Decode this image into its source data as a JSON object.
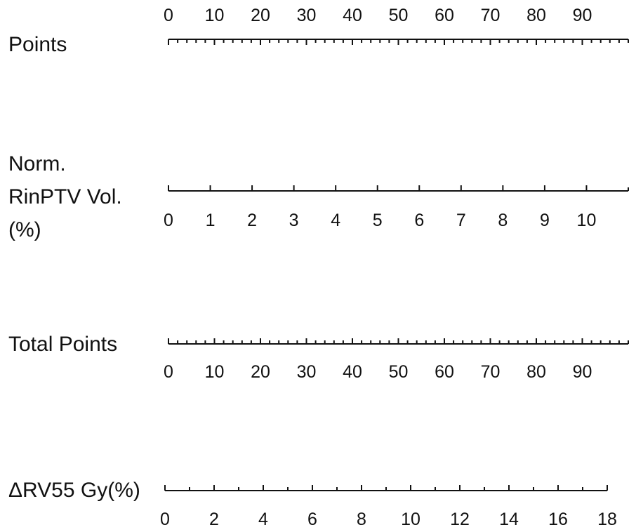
{
  "chart_data": {
    "type": "nomogram",
    "color": "#111111",
    "rows": [
      {
        "id": "points",
        "label_lines": [
          "Points"
        ],
        "min": 0,
        "max": 100,
        "ticks": [
          0,
          10,
          20,
          30,
          40,
          50,
          60,
          70,
          80,
          90
        ],
        "minor_step": 2,
        "tick_direction": "down",
        "labels_position": "above"
      },
      {
        "id": "norm-rinptv-vol",
        "label_lines": [
          "Norm.",
          "RinPTV Vol.",
          "(%)"
        ],
        "min": 0,
        "max": 11,
        "ticks": [
          0,
          1,
          2,
          3,
          4,
          5,
          6,
          7,
          8,
          9,
          10
        ],
        "minor_step": 1,
        "tick_direction": "up",
        "labels_position": "below"
      },
      {
        "id": "total-points",
        "label_lines": [
          "Total Points"
        ],
        "min": 0,
        "max": 100,
        "ticks": [
          0,
          10,
          20,
          30,
          40,
          50,
          60,
          70,
          80,
          90
        ],
        "minor_step": 2,
        "tick_direction": "up",
        "labels_position": "below"
      },
      {
        "id": "delta-rv55",
        "label_lines": [
          "ΔRV55 Gy(%)"
        ],
        "min": 0,
        "max": 18,
        "ticks": [
          0,
          2,
          4,
          6,
          8,
          10,
          12,
          14,
          16,
          18
        ],
        "minor_step": 1,
        "tick_direction": "up",
        "labels_position": "below"
      }
    ]
  }
}
